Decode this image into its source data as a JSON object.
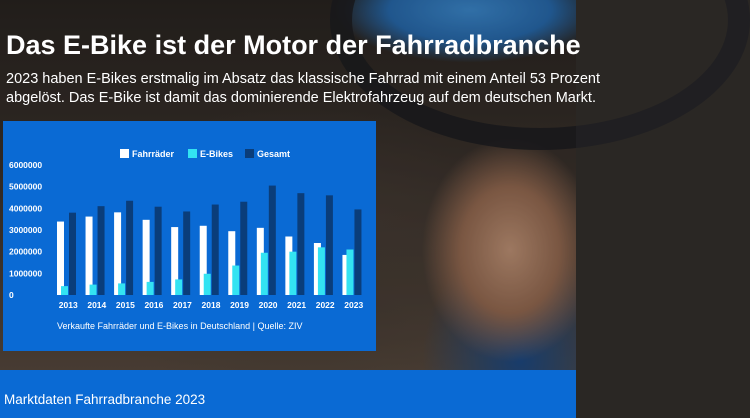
{
  "header": {
    "title": "Das E-Bike ist der Motor der Fahrradbranche",
    "subtitle_line1": "2023 haben E-Bikes erstmalig im Absatz das klassische Fahrrad mit einem Anteil 53 Prozent",
    "subtitle_line2": "abgelöst. Das E-Bike ist damit das dominierende Elektrofahrzeug auf dem deutschen Markt."
  },
  "chart_data": {
    "type": "bar",
    "categories": [
      "2013",
      "2014",
      "2015",
      "2016",
      "2017",
      "2018",
      "2019",
      "2020",
      "2021",
      "2022",
      "2023"
    ],
    "series": [
      {
        "name": "Fahrräder",
        "color": "#ffffff",
        "values": [
          3390000,
          3620000,
          3815000,
          3470000,
          3135000,
          3195000,
          2945000,
          3100000,
          2700000,
          2400000,
          1850000
        ]
      },
      {
        "name": "E-Bikes",
        "color": "#33e3f2",
        "values": [
          410000,
          480000,
          535000,
          605000,
          720000,
          980000,
          1360000,
          1950000,
          2000000,
          2200000,
          2100000
        ]
      },
      {
        "name": "Gesamt",
        "color": "#0a3d7a",
        "values": [
          3800000,
          4100000,
          4350000,
          4075000,
          3855000,
          4175000,
          4305000,
          5050000,
          4700000,
          4600000,
          3950000
        ]
      }
    ],
    "y_ticks": [
      "0",
      "1000000",
      "2000000",
      "3000000",
      "4000000",
      "5000000",
      "6000000"
    ],
    "ylim": [
      0,
      6000000
    ],
    "legend_position": "top",
    "source": "Verkaufte Fahrräder und E-Bikes in Deutschland | Quelle: ZIV"
  },
  "footer": {
    "label": "Marktdaten Fahrradbranche 2023"
  },
  "colors": {
    "panel_blue": "#0a6ad4",
    "ebike_cyan": "#33e3f2",
    "gesamt_navy": "#0a3d7a"
  }
}
